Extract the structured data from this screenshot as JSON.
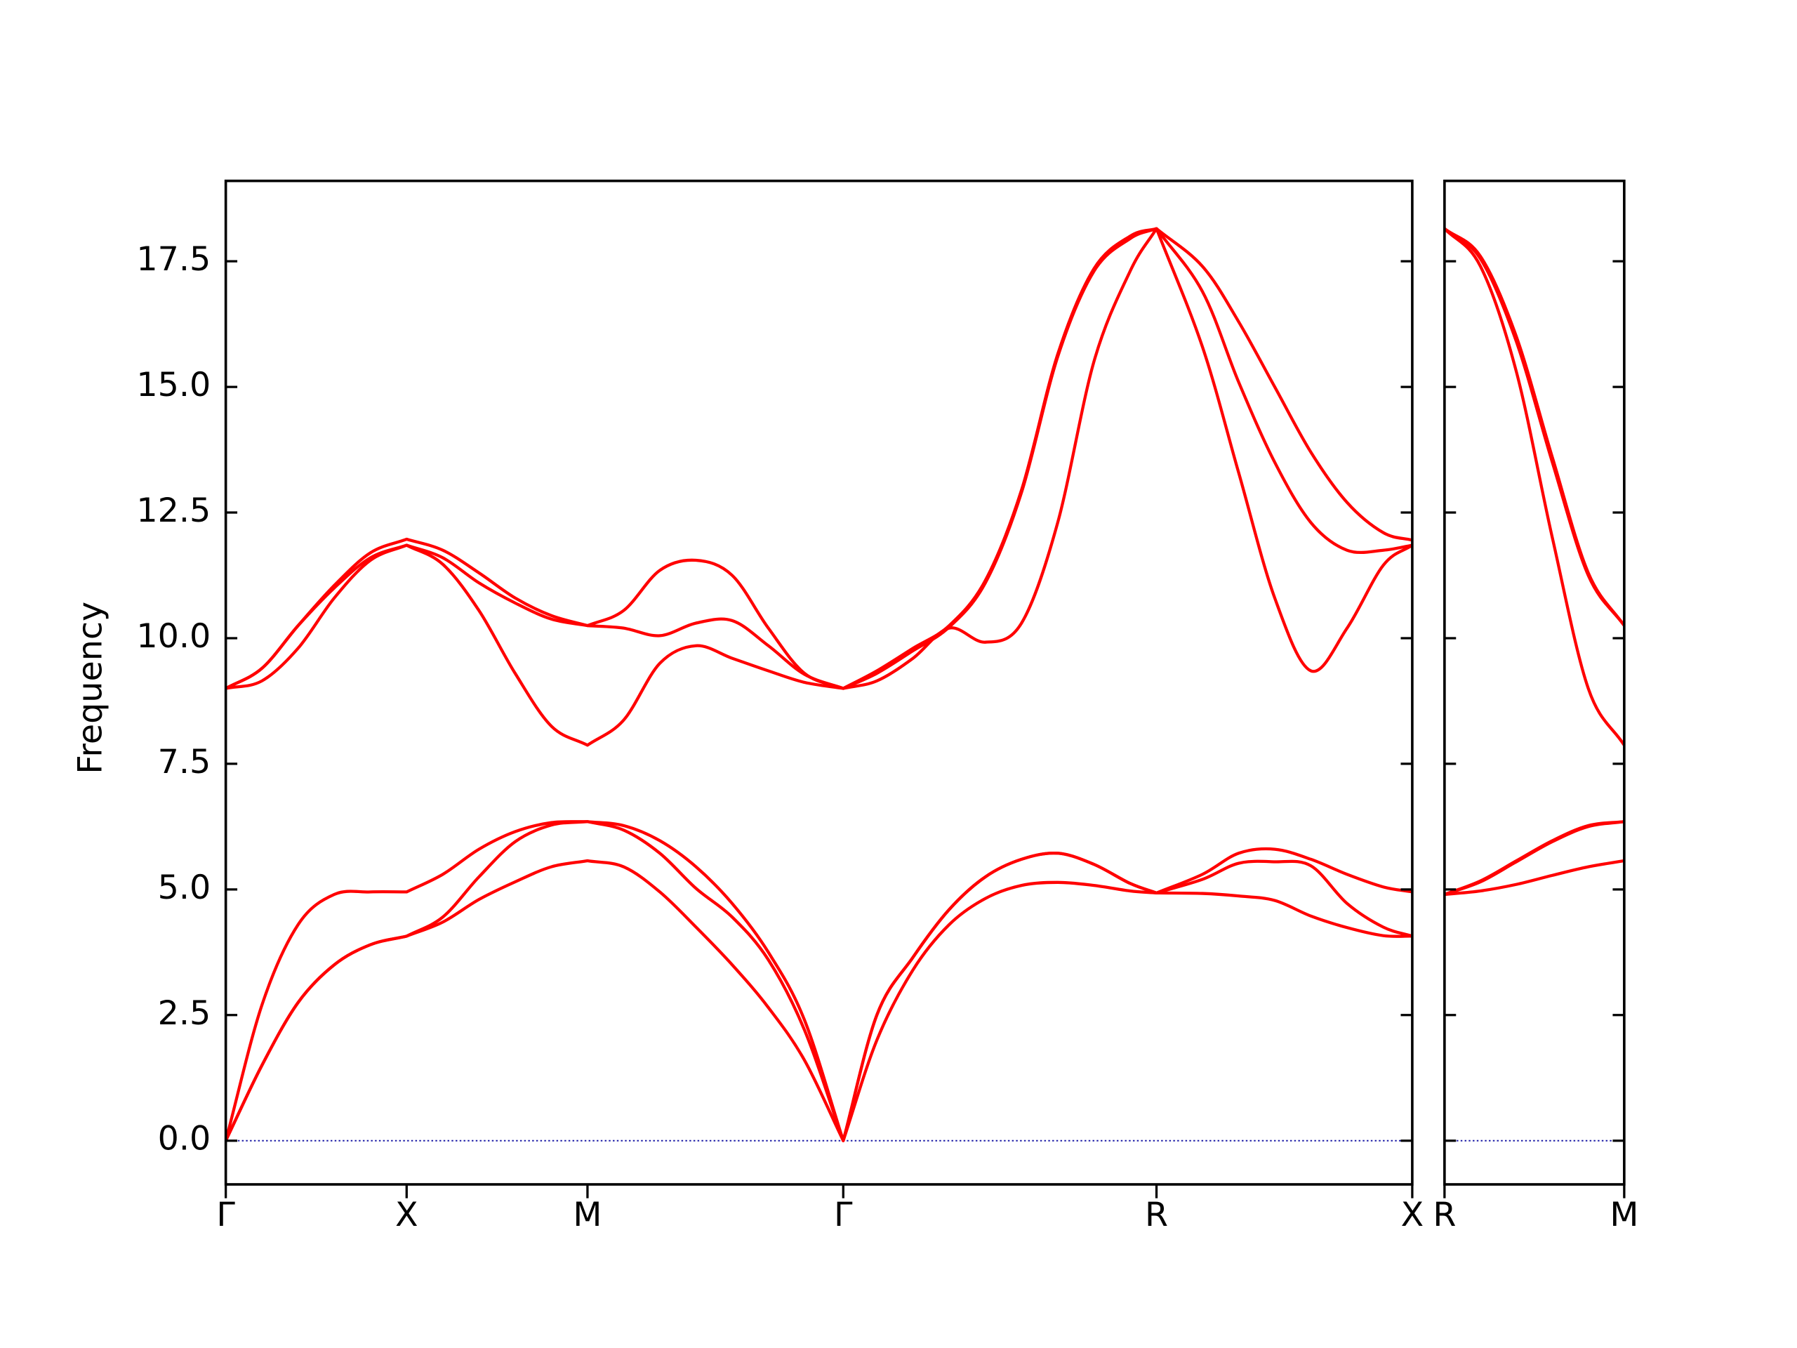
{
  "chart_data": [
    {
      "type": "line",
      "ylabel": "Frequency",
      "x": [
        0,
        0.1,
        0.2,
        0.3,
        0.4,
        0.5,
        0.6,
        0.7,
        0.8,
        0.9,
        1.0,
        1.1,
        1.2,
        1.3,
        1.4,
        1.5,
        1.6,
        1.7071,
        1.8,
        1.9,
        2.0,
        2.1,
        2.2,
        2.3,
        2.4,
        2.5,
        2.5731,
        2.7,
        2.8,
        2.9,
        3.0,
        3.1,
        3.2,
        3.2802
      ],
      "xlim": [
        0,
        3.2802
      ],
      "xticks": [
        {
          "value": 0,
          "label": "Γ"
        },
        {
          "value": 0.5,
          "label": "X"
        },
        {
          "value": 1.0,
          "label": "M"
        },
        {
          "value": 1.7071,
          "label": "Γ"
        },
        {
          "value": 2.5731,
          "label": "R"
        },
        {
          "value": 3.2802,
          "label": "X"
        }
      ],
      "ylim": [
        -0.87,
        19.1
      ],
      "yticks": [
        {
          "value": 0,
          "label": "0.0"
        },
        2.5,
        {
          "value": 5,
          "label": "5.0"
        },
        7.5,
        {
          "value": 10,
          "label": "10.0"
        },
        12.5,
        {
          "value": 15,
          "label": "15.0"
        },
        17.5
      ],
      "hline": 0,
      "hline_color": "#1a1aa6",
      "series": [
        {
          "color": "#ff0000",
          "values": [
            0,
            1.5,
            2.75,
            3.5,
            3.9,
            4.07,
            4.35,
            4.8,
            5.15,
            5.45,
            5.57,
            5.45,
            4.95,
            4.25,
            3.5,
            2.65,
            1.6,
            0,
            2.0,
            3.4,
            4.3,
            4.82,
            5.08,
            5.14,
            5.08,
            4.97,
            4.93,
            4.92,
            4.87,
            4.78,
            4.47,
            4.24,
            4.08,
            4.07
          ]
        },
        {
          "color": "#ff0000",
          "values": [
            0,
            1.5,
            2.75,
            3.5,
            3.9,
            4.07,
            4.45,
            5.25,
            5.95,
            6.28,
            6.35,
            6.18,
            5.72,
            5.02,
            4.45,
            3.6,
            2.2,
            0,
            2.5,
            3.65,
            4.6,
            5.25,
            5.6,
            5.72,
            5.5,
            5.12,
            4.93,
            5.2,
            5.52,
            5.55,
            5.47,
            4.72,
            4.25,
            4.07
          ]
        },
        {
          "color": "#ff0000",
          "values": [
            0,
            2.7,
            4.3,
            4.9,
            4.95,
            4.95,
            5.3,
            5.8,
            6.15,
            6.33,
            6.35,
            6.27,
            5.97,
            5.45,
            4.72,
            3.75,
            2.4,
            0,
            2.5,
            3.65,
            4.6,
            5.25,
            5.6,
            5.72,
            5.5,
            5.12,
            4.93,
            5.3,
            5.72,
            5.8,
            5.6,
            5.3,
            5.05,
            4.95
          ]
        },
        {
          "color": "#ff0000",
          "values": [
            9.0,
            9.15,
            9.8,
            10.8,
            11.55,
            11.85,
            11.47,
            10.55,
            9.3,
            8.25,
            7.87,
            8.37,
            9.5,
            9.85,
            9.6,
            9.35,
            9.12,
            9.0,
            9.15,
            9.6,
            10.2,
            9.92,
            10.3,
            12.3,
            15.5,
            17.3,
            18.15,
            15.8,
            13.3,
            10.8,
            9.35,
            10.2,
            11.45,
            11.85
          ]
        },
        {
          "color": "#ff0000",
          "values": [
            9.0,
            9.4,
            10.25,
            11.0,
            11.6,
            11.85,
            11.6,
            11.1,
            10.7,
            10.38,
            10.25,
            10.2,
            10.05,
            10.3,
            10.35,
            9.85,
            9.28,
            9.0,
            9.3,
            9.75,
            10.22,
            11.1,
            12.9,
            15.6,
            17.3,
            17.95,
            18.15,
            16.9,
            15.1,
            13.5,
            12.3,
            11.75,
            11.75,
            11.85
          ]
        },
        {
          "color": "#ff0000",
          "values": [
            9.0,
            9.4,
            10.25,
            11.05,
            11.7,
            11.97,
            11.75,
            11.3,
            10.8,
            10.45,
            10.25,
            10.55,
            11.35,
            11.55,
            11.25,
            10.2,
            9.3,
            9.0,
            9.35,
            9.8,
            10.25,
            11.15,
            12.95,
            15.65,
            17.35,
            18.0,
            18.15,
            17.4,
            16.3,
            15.0,
            13.7,
            12.7,
            12.1,
            11.95
          ]
        }
      ]
    },
    {
      "type": "line",
      "x": [
        0,
        0.1,
        0.2,
        0.3,
        0.4,
        0.5
      ],
      "xlim": [
        0,
        0.5
      ],
      "xticks": [
        {
          "value": 0,
          "label": "R"
        },
        {
          "value": 0.5,
          "label": "M"
        }
      ],
      "ylim": [
        -0.87,
        19.1
      ],
      "yticks": [
        0,
        2.5,
        5,
        7.5,
        10,
        12.5,
        15,
        17.5
      ],
      "hline": 0,
      "hline_color": "#1a1aa6",
      "series": [
        {
          "color": "#ff0000",
          "values": [
            4.9,
            4.97,
            5.1,
            5.28,
            5.45,
            5.57
          ]
        },
        {
          "color": "#ff0000",
          "values": [
            4.9,
            5.15,
            5.55,
            5.95,
            6.25,
            6.35
          ]
        },
        {
          "color": "#ff0000",
          "values": [
            4.9,
            5.17,
            5.57,
            5.97,
            6.27,
            6.35
          ]
        },
        {
          "color": "#ff0000",
          "values": [
            18.15,
            17.4,
            15.3,
            12.0,
            9.0,
            7.87
          ]
        },
        {
          "color": "#ff0000",
          "values": [
            18.15,
            17.55,
            15.9,
            13.5,
            11.25,
            10.25
          ]
        },
        {
          "color": "#ff0000",
          "values": [
            18.15,
            17.6,
            16.0,
            13.6,
            11.3,
            10.25
          ]
        }
      ]
    }
  ]
}
